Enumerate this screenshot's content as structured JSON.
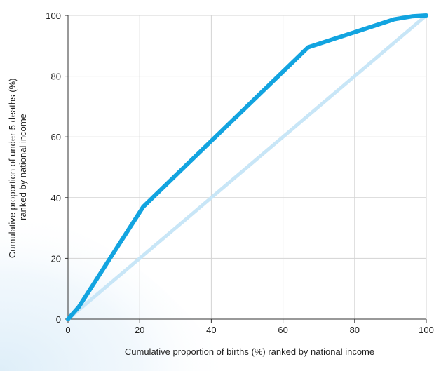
{
  "chart_data": {
    "type": "line",
    "title": "",
    "xlabel": "Cumulative proportion of births (%) ranked by national income",
    "ylabel_lines": [
      "Cumulative proportion of under-5 deaths (%)",
      "ranked by national income"
    ],
    "xlim": [
      0,
      100
    ],
    "ylim": [
      0,
      100
    ],
    "x_ticks": [
      0,
      20,
      40,
      60,
      80,
      100
    ],
    "y_ticks": [
      0,
      20,
      40,
      60,
      80,
      100
    ],
    "x_tick_labels": [
      "0",
      "20",
      "40",
      "60",
      "80",
      "100"
    ],
    "y_tick_labels": [
      "0",
      "20",
      "40",
      "60",
      "80",
      "100"
    ],
    "grid": true,
    "legend": "none",
    "series": [
      {
        "color": "#c8e6f7",
        "x": [
          0,
          100
        ],
        "y": [
          0,
          100
        ]
      },
      {
        "color": "#12a4e0",
        "x": [
          0,
          3,
          21,
          67,
          91,
          96,
          100
        ],
        "y": [
          0,
          4,
          37,
          89.5,
          98.7,
          99.7,
          100
        ]
      }
    ]
  }
}
